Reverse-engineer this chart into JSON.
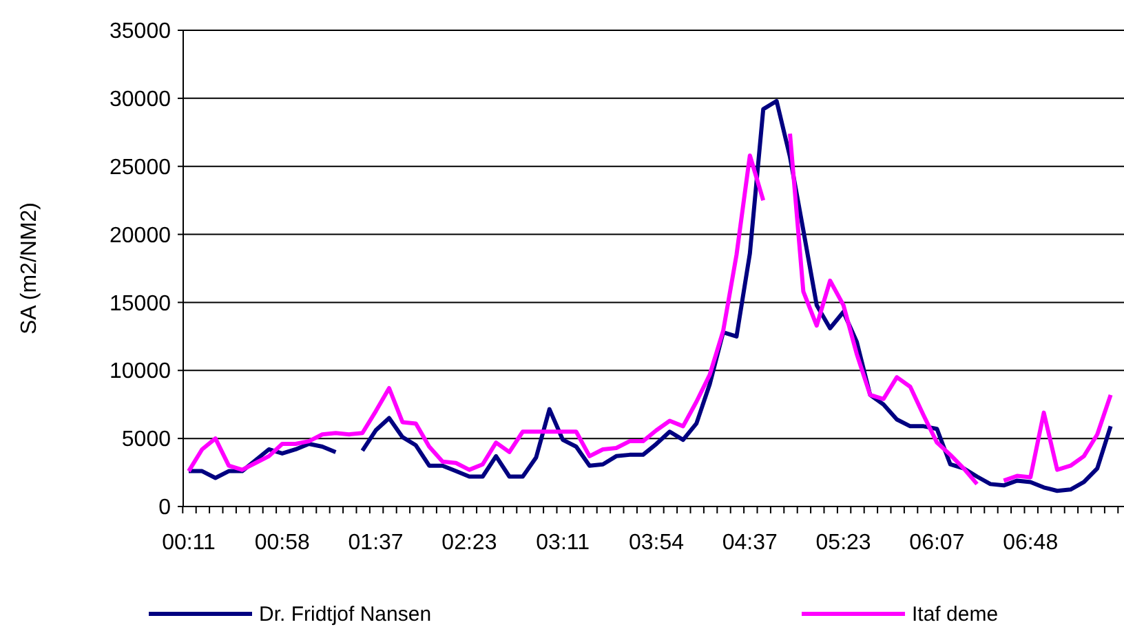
{
  "chart_data": {
    "type": "line",
    "ylabel": "SA (m2/NM2)",
    "categories": [
      "00:11",
      null,
      null,
      null,
      null,
      null,
      null,
      "00:58",
      null,
      null,
      null,
      null,
      null,
      null,
      "01:37",
      null,
      null,
      null,
      null,
      null,
      null,
      "02:23",
      null,
      null,
      null,
      null,
      null,
      null,
      "03:11",
      null,
      null,
      null,
      null,
      null,
      null,
      "03:54",
      null,
      null,
      null,
      null,
      null,
      null,
      "04:37",
      null,
      null,
      null,
      null,
      null,
      null,
      "05:23",
      null,
      null,
      null,
      null,
      null,
      null,
      "06:07",
      null,
      null,
      null,
      null,
      null,
      null,
      "06:48",
      null,
      null,
      null,
      null,
      null,
      null
    ],
    "series": [
      {
        "name": "Dr. Fridtjof Nansen",
        "color": "#000080",
        "values": [
          2600,
          2600,
          2100,
          2600,
          2600,
          3400,
          4200,
          3900,
          4200,
          4600,
          4400,
          4000,
          null,
          4100,
          5600,
          6500,
          5100,
          4500,
          3000,
          3000,
          2600,
          2200,
          2200,
          3700,
          2200,
          2200,
          3600,
          7150,
          4900,
          4400,
          3000,
          3100,
          3700,
          3800,
          3800,
          4600,
          5500,
          4900,
          6100,
          9000,
          12800,
          12500,
          18600,
          29200,
          29800,
          25700,
          20300,
          14800,
          13100,
          14300,
          12100,
          8200,
          7500,
          6400,
          5900,
          5900,
          5700,
          3100,
          2800,
          2200,
          1650,
          1550,
          1900,
          1800,
          1400,
          1150,
          1250,
          1800,
          2800,
          5900
        ]
      },
      {
        "name": "Itaf deme",
        "color": "#ff00ff",
        "values": [
          2600,
          4200,
          5000,
          3000,
          2700,
          3200,
          3700,
          4600,
          4600,
          4800,
          5300,
          5400,
          5300,
          5400,
          7000,
          8700,
          6200,
          6100,
          4400,
          3300,
          3200,
          2700,
          3100,
          4700,
          4000,
          5500,
          5500,
          5500,
          5500,
          5500,
          3700,
          4200,
          4300,
          4800,
          4800,
          5600,
          6300,
          5900,
          7700,
          9700,
          12900,
          18500,
          25800,
          22500,
          null,
          27400,
          15800,
          13300,
          16600,
          14800,
          11200,
          8200,
          7900,
          9500,
          8800,
          6700,
          4700,
          3800,
          2800,
          1650,
          null,
          1900,
          2250,
          2150,
          6900,
          2700,
          3000,
          3700,
          5300,
          8200
        ]
      }
    ],
    "ylim": [
      0,
      35000
    ],
    "yticks": [
      0,
      5000,
      10000,
      15000,
      20000,
      25000,
      30000,
      35000
    ],
    "grid": "y",
    "legend": "bottom",
    "marker": "none",
    "line_style": "solid"
  }
}
